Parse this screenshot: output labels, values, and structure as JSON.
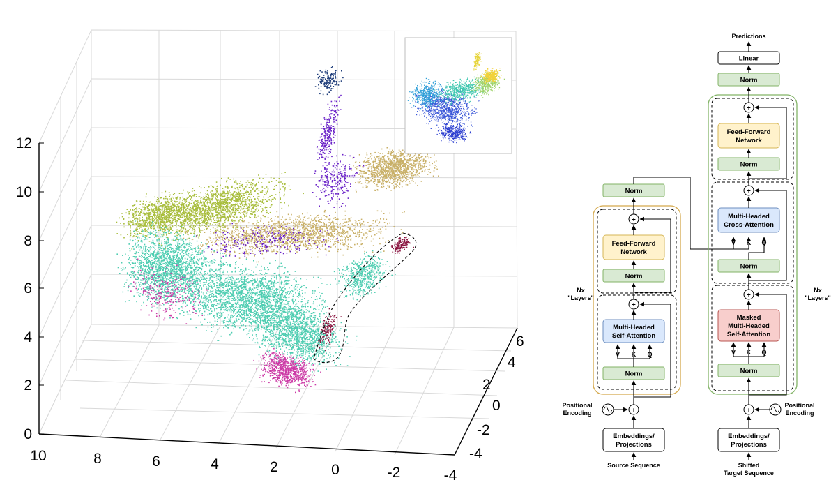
{
  "plot": {
    "z_ticks": [
      "0",
      "2",
      "4",
      "6",
      "8",
      "10",
      "12"
    ],
    "x_ticks": [
      "10",
      "8",
      "6",
      "4",
      "2",
      "0",
      "-2",
      "-4"
    ],
    "y_ticks": [
      "-4",
      "-2",
      "0",
      "2",
      "4",
      "6"
    ],
    "palette": [
      "#1f3d7a",
      "#6a22c8",
      "#c9b068",
      "#a8bd3c",
      "#4ecdb1",
      "#cc3aa6",
      "#8a1440"
    ]
  },
  "encoder": {
    "norm_out": "Norm",
    "ff_l1": "Feed-Forward",
    "ff_l2": "Network",
    "norm_mid": "Norm",
    "att_l1": "Multi-Headed",
    "att_l2": "Self-Attention",
    "v": "V",
    "k": "K",
    "q": "Q",
    "norm_in": "Norm",
    "plus": "+",
    "layers_l1": "Nx",
    "layers_l2": "\"Layers\"",
    "pos_l1": "Positional",
    "pos_l2": "Encoding",
    "embed_l1": "Embeddings/",
    "embed_l2": "Projections",
    "source": "Source Sequence"
  },
  "decoder": {
    "predictions": "Predictions",
    "linear": "Linear",
    "norm_top": "Norm",
    "ff_l1": "Feed-Forward",
    "ff_l2": "Network",
    "norm_ff": "Norm",
    "cross_l1": "Multi-Headed",
    "cross_l2": "Cross-Attention",
    "norm_cross": "Norm",
    "masked_l1": "Masked",
    "masked_l2": "Multi-Headed",
    "masked_l3": "Self-Attention",
    "v": "V",
    "k": "K",
    "q": "Q",
    "norm_in": "Norm",
    "plus": "+",
    "layers_l1": "Nx",
    "layers_l2": "\"Layers\"",
    "pos_l1": "Positional",
    "pos_l2": "Encoding",
    "embed_l1": "Embeddings/",
    "embed_l2": "Projections",
    "target_l1": "Shifted",
    "target_l2": "Target Sequence"
  }
}
